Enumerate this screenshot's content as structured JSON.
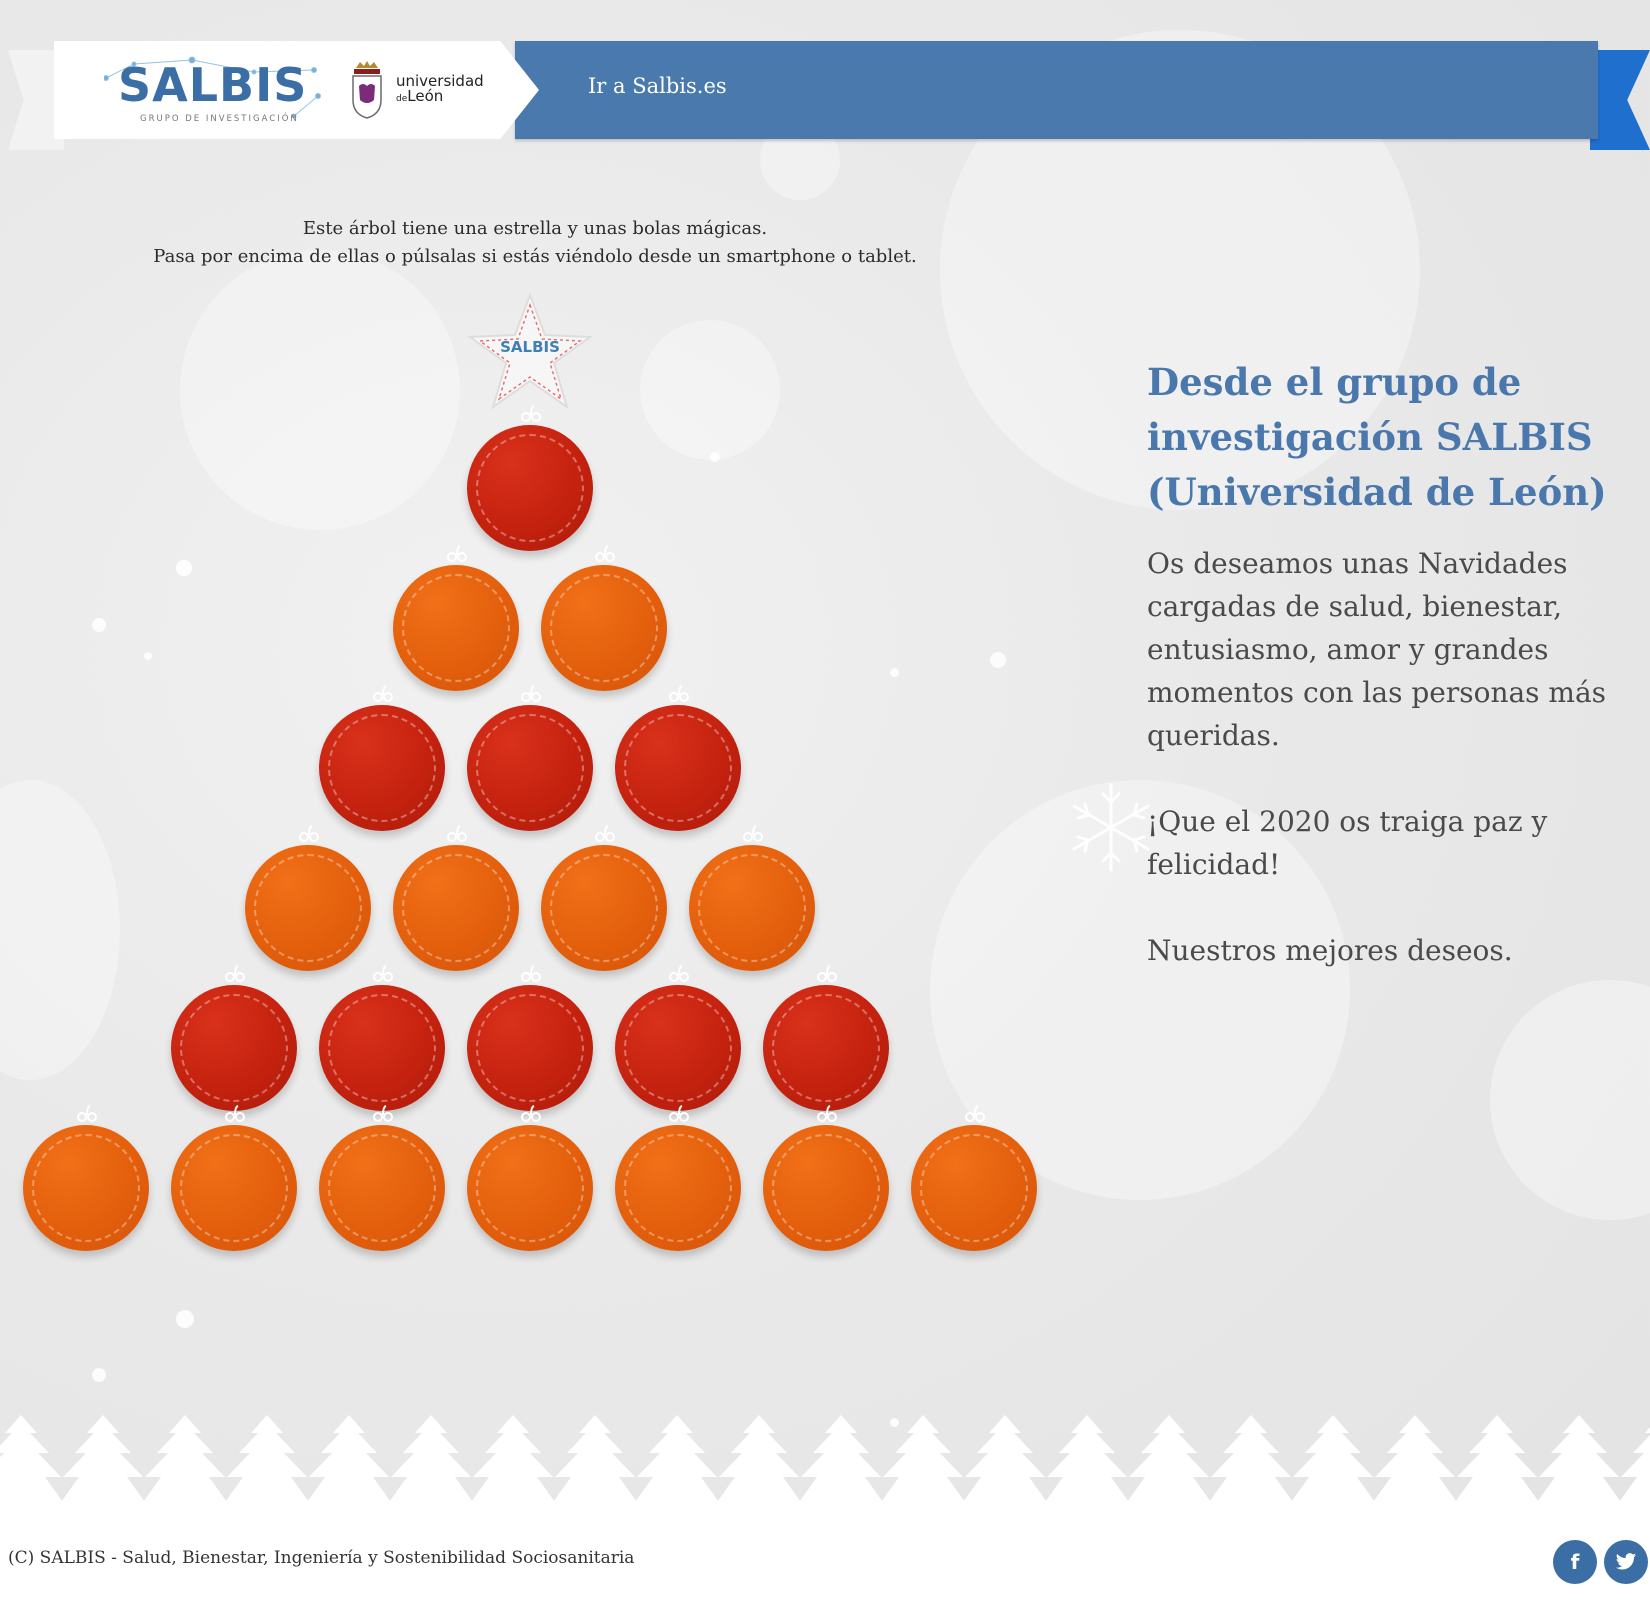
{
  "header": {
    "logo_name": "SALBIS",
    "logo_subtitle": "GRUPO DE INVESTIGACIÓN",
    "university_line1": "universidad",
    "university_prefix": "de",
    "university_line2": "León",
    "nav_link_label": "Ir a Salbis.es"
  },
  "intro": {
    "line1": "Este árbol tiene una estrella y unas bolas mágicas.",
    "line2": "Pasa por encima de ellas o púlsalas si estás viéndolo desde un smartphone o tablet."
  },
  "star": {
    "label": "SALBIS"
  },
  "tree": {
    "rows": [
      [
        "red"
      ],
      [
        "orange",
        "orange"
      ],
      [
        "red",
        "red",
        "red"
      ],
      [
        "orange",
        "orange",
        "orange",
        "orange"
      ],
      [
        "red",
        "red",
        "red",
        "red",
        "red"
      ],
      [
        "orange",
        "orange",
        "orange",
        "orange",
        "orange",
        "orange",
        "orange"
      ]
    ]
  },
  "message": {
    "heading": "Desde el grupo de investigación SALBIS (Universidad de León)",
    "paragraph1": "Os deseamos unas Navidades cargadas de salud, bienestar, entusiasmo, amor y grandes momentos con las personas más queridas.",
    "paragraph2": "¡Que el 2020 os traiga paz y felicidad!",
    "paragraph3": "Nuestros mejores deseos."
  },
  "footer": {
    "copyright": "(C) SALBIS - Salud, Bienestar, Ingeniería y Sostenibilidad Sociosanitaria",
    "facebook_icon": "f",
    "twitter_icon": "🐦"
  },
  "colors": {
    "ribbon_blue": "#4a7aad",
    "ribbon_tail_blue": "#1f6fcf",
    "ball_red": "#c4220f",
    "ball_orange": "#e35f0c",
    "heading_blue": "#4a78ad"
  }
}
